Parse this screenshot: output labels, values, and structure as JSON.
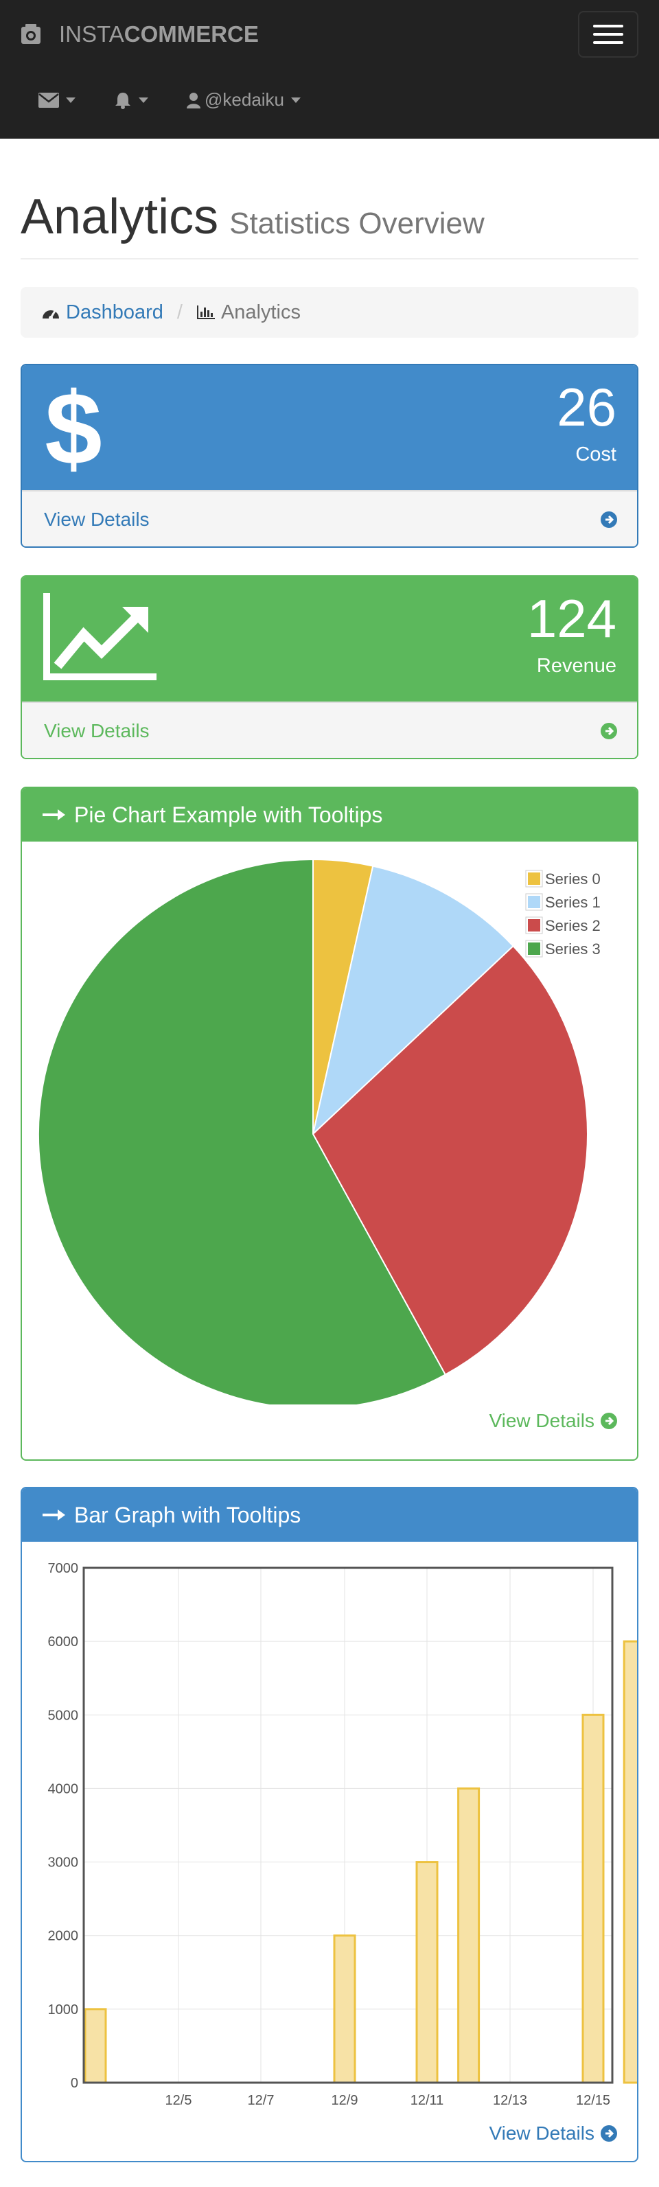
{
  "navbar": {
    "brand_light": "INSTA",
    "brand_bold": "COMMERCE",
    "user": "@kedaiku"
  },
  "header": {
    "title": "Analytics",
    "subtitle": "Statistics Overview"
  },
  "breadcrumb": {
    "home": "Dashboard",
    "current": "Analytics"
  },
  "stats": [
    {
      "value": "26",
      "label": "Cost",
      "link": "View Details",
      "color": "#428bca"
    },
    {
      "value": "124",
      "label": "Revenue",
      "link": "View Details",
      "color": "#5cb85c"
    }
  ],
  "pie_panel": {
    "title": "Pie Chart Example with Tooltips",
    "link": "View Details"
  },
  "bar_panel": {
    "title": "Bar Graph with Tooltips",
    "link": "View Details"
  },
  "chart_data": [
    {
      "type": "pie",
      "categories": [
        "Series 0",
        "Series 1",
        "Series 2",
        "Series 3"
      ],
      "values": [
        3.5,
        9.5,
        29,
        58
      ],
      "colors": [
        "#edc240",
        "#afd8f8",
        "#cb4b4b",
        "#4da74d"
      ],
      "legend": "top-right"
    },
    {
      "type": "bar",
      "x": [
        "12/3",
        "12/9",
        "12/11",
        "12/12",
        "12/15",
        "12/16"
      ],
      "values": [
        1000,
        2000,
        3000,
        4000,
        5000,
        6000
      ],
      "xticks": [
        "12/5",
        "12/7",
        "12/9",
        "12/11",
        "12/13",
        "12/15"
      ],
      "yticks": [
        "0",
        "1000",
        "2000",
        "3000",
        "4000",
        "5000",
        "6000",
        "7000"
      ],
      "ylim": [
        0,
        7000
      ],
      "grid": true,
      "color": "#edc240"
    }
  ]
}
